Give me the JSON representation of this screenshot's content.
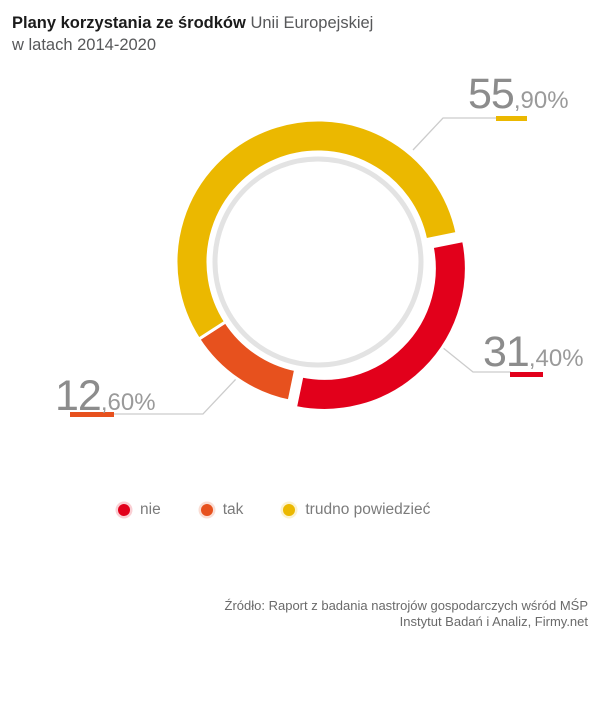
{
  "header": {
    "title_bold": "Plany korzystania ze środków",
    "title_regular": "Unii Europejskiej",
    "title_line2": "w latach 2014-2020"
  },
  "chart_data": {
    "type": "pie",
    "subtype": "donut",
    "title": "Plany korzystania ze środków Unii Europejskiej w latach 2014-2020",
    "unit": "%",
    "segments": [
      {
        "label": "nie",
        "value": 31.4,
        "display": "31,40%",
        "value_big": "31",
        "value_small": ",40%",
        "color": "#e2001b"
      },
      {
        "label": "tak",
        "value": 12.6,
        "display": "12,60%",
        "value_big": "12",
        "value_small": ",60%",
        "color": "#e7511e"
      },
      {
        "label": "trudno powiedzieć",
        "value": 55.9,
        "display": "55,90%",
        "value_big": "55",
        "value_small": ",90%",
        "color": "#ebb800"
      }
    ],
    "layout": {
      "start_angle_deg": 78.7,
      "direction": "clockwise",
      "exploded_segment": "nie",
      "donut_hole": true,
      "legend_position": "bottom",
      "connector_color": "#cccccc",
      "inner_ring_color": "#e3e3e3"
    }
  },
  "source": {
    "line1": "Źródło: Raport z badania nastrojów gospodarczych wśród MŚP",
    "line2": "Instytut Badań i Analiz, Firmy.net"
  }
}
